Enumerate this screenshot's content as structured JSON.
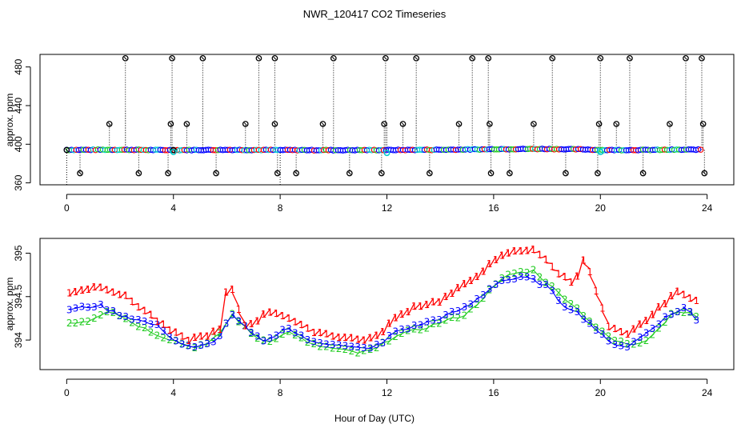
{
  "title": "NWR_120417  CO2 Timeseries",
  "xlabel": "Hour of Day (UTC)",
  "colors": {
    "s1": "#ff0000",
    "s2": "#22cc22",
    "s3": "#0000ff",
    "outlier": "#000000",
    "cyan": "#00cccc",
    "blue": "#0000ff"
  },
  "chart_data": [
    {
      "type": "scatter",
      "panel": "top",
      "title": "NWR_120417  CO2 Timeseries",
      "ylabel": "approx. ppm",
      "xlabel": "",
      "xlim": [
        -1,
        25
      ],
      "ylim": [
        358,
        493
      ],
      "xticks": [
        0,
        4,
        8,
        12,
        16,
        20,
        24
      ],
      "yticks": [
        360,
        400,
        440,
        480
      ],
      "baseline": [
        [
          0.0,
          394.2
        ],
        [
          2.0,
          394.3
        ],
        [
          4.0,
          393.9
        ],
        [
          6.0,
          394.2
        ],
        [
          8.0,
          394.0
        ],
        [
          10.0,
          393.9
        ],
        [
          12.0,
          394.0
        ],
        [
          14.0,
          394.3
        ],
        [
          15.8,
          394.7
        ],
        [
          16.0,
          395.0
        ],
        [
          18.0,
          395.1
        ],
        [
          19.5,
          394.6
        ],
        [
          20.0,
          394.0
        ],
        [
          22.0,
          394.1
        ],
        [
          23.8,
          394.4
        ]
      ],
      "outliers": {
        "x": [
          0.0,
          0.5,
          1.6,
          2.2,
          2.7,
          3.8,
          3.9,
          3.95,
          4.0,
          4.5,
          5.1,
          5.6,
          6.7,
          7.2,
          7.8,
          7.8,
          7.9,
          8.6,
          9.6,
          10.0,
          10.6,
          11.8,
          11.9,
          11.95,
          12.6,
          13.1,
          13.6,
          14.7,
          15.2,
          15.8,
          15.85,
          15.9,
          16.6,
          17.5,
          18.2,
          18.7,
          19.9,
          19.95,
          20.0,
          20.6,
          21.1,
          21.6,
          22.6,
          23.2,
          23.8,
          23.85,
          23.9
        ],
        "y": [
          394,
          370,
          421,
          489,
          370,
          370,
          421,
          489,
          394,
          421,
          489,
          370,
          421,
          489,
          489,
          421,
          370,
          370,
          421,
          489,
          370,
          370,
          421,
          489,
          421,
          489,
          370,
          421,
          489,
          489,
          421,
          370,
          370,
          421,
          489,
          370,
          370,
          421,
          489,
          421,
          489,
          370,
          421,
          489,
          489,
          421,
          370
        ]
      },
      "highlights": {
        "x": [
          4.0,
          12.0,
          20.0
        ],
        "y": [
          392,
          391,
          392
        ]
      },
      "dashes": [
        {
          "x": 0.0,
          "y_from": 358,
          "y_to": 394
        },
        {
          "x": 2.2,
          "y_from": 394,
          "y_to": 435
        },
        {
          "x": 5.1,
          "y_from": 394,
          "y_to": 450
        },
        {
          "x": 8.0,
          "y_from": 358,
          "y_to": 394
        },
        {
          "x": 12.0,
          "y_from": 394,
          "y_to": 420
        },
        {
          "x": 13.1,
          "y_from": 394,
          "y_to": 430
        },
        {
          "x": 20.1,
          "y_from": 390,
          "y_to": 394
        }
      ]
    },
    {
      "type": "line",
      "panel": "bottom",
      "ylabel": "approx. ppm",
      "xlabel": "Hour of Day (UTC)",
      "xlim": [
        -1,
        25
      ],
      "ylim": [
        393.66,
        395.17
      ],
      "xticks": [
        0,
        4,
        8,
        12,
        16,
        20,
        24
      ],
      "yticks": [
        394.0,
        394.5,
        395.0
      ],
      "series": [
        {
          "name": "1",
          "symbol": "1",
          "color": "#ff0000",
          "points": [
            [
              0.1,
              394.55
            ],
            [
              1.3,
              394.62
            ],
            [
              2.2,
              394.5
            ],
            [
              3.0,
              394.32
            ],
            [
              3.8,
              394.12
            ],
            [
              4.5,
              394.0
            ],
            [
              5.2,
              394.05
            ],
            [
              5.8,
              394.12
            ],
            [
              6.0,
              394.6
            ],
            [
              6.3,
              394.55
            ],
            [
              6.6,
              394.15
            ],
            [
              7.1,
              394.22
            ],
            [
              7.6,
              394.33
            ],
            [
              8.2,
              394.28
            ],
            [
              9.0,
              394.12
            ],
            [
              10.0,
              394.05
            ],
            [
              11.0,
              394.0
            ],
            [
              11.6,
              394.03
            ],
            [
              12.2,
              394.22
            ],
            [
              13.0,
              394.38
            ],
            [
              14.0,
              394.45
            ],
            [
              15.0,
              394.65
            ],
            [
              15.8,
              394.85
            ],
            [
              16.5,
              395.0
            ],
            [
              17.5,
              395.05
            ],
            [
              18.5,
              394.75
            ],
            [
              19.0,
              394.65
            ],
            [
              19.4,
              394.95
            ],
            [
              19.8,
              394.6
            ],
            [
              20.3,
              394.15
            ],
            [
              21.0,
              394.05
            ],
            [
              22.0,
              394.3
            ],
            [
              22.8,
              394.55
            ],
            [
              23.8,
              394.45
            ]
          ]
        },
        {
          "name": "2",
          "symbol": "2",
          "color": "#22cc22",
          "points": [
            [
              0.1,
              394.2
            ],
            [
              0.8,
              394.22
            ],
            [
              1.6,
              394.35
            ],
            [
              2.6,
              394.18
            ],
            [
              3.5,
              394.05
            ],
            [
              4.0,
              394.0
            ],
            [
              4.7,
              393.92
            ],
            [
              5.3,
              393.95
            ],
            [
              5.8,
              394.1
            ],
            [
              6.2,
              394.3
            ],
            [
              6.5,
              394.2
            ],
            [
              7.0,
              394.05
            ],
            [
              7.5,
              393.98
            ],
            [
              8.4,
              394.1
            ],
            [
              9.1,
              393.95
            ],
            [
              10.0,
              393.9
            ],
            [
              11.0,
              393.85
            ],
            [
              11.6,
              393.9
            ],
            [
              12.3,
              394.05
            ],
            [
              13.2,
              394.12
            ],
            [
              14.0,
              394.2
            ],
            [
              15.0,
              394.3
            ],
            [
              15.8,
              394.55
            ],
            [
              16.5,
              394.75
            ],
            [
              17.5,
              394.8
            ],
            [
              18.4,
              394.55
            ],
            [
              19.0,
              394.4
            ],
            [
              19.5,
              394.25
            ],
            [
              20.0,
              394.1
            ],
            [
              20.6,
              393.98
            ],
            [
              21.2,
              393.95
            ],
            [
              21.7,
              394.0
            ],
            [
              22.4,
              394.2
            ],
            [
              22.8,
              394.35
            ],
            [
              23.4,
              394.3
            ],
            [
              23.8,
              394.25
            ]
          ]
        },
        {
          "name": "3",
          "symbol": "3",
          "color": "#0000ff",
          "points": [
            [
              0.1,
              394.35
            ],
            [
              1.2,
              394.4
            ],
            [
              1.9,
              394.3
            ],
            [
              2.8,
              394.22
            ],
            [
              3.5,
              394.15
            ],
            [
              4.0,
              394.0
            ],
            [
              4.7,
              393.9
            ],
            [
              5.3,
              393.95
            ],
            [
              5.8,
              394.05
            ],
            [
              6.1,
              394.3
            ],
            [
              6.5,
              394.2
            ],
            [
              7.0,
              394.05
            ],
            [
              7.5,
              393.98
            ],
            [
              8.2,
              394.15
            ],
            [
              9.0,
              394.0
            ],
            [
              10.0,
              393.95
            ],
            [
              10.5,
              393.92
            ],
            [
              11.2,
              393.9
            ],
            [
              11.8,
              393.95
            ],
            [
              12.3,
              394.1
            ],
            [
              13.0,
              394.15
            ],
            [
              14.0,
              394.25
            ],
            [
              15.0,
              394.38
            ],
            [
              15.6,
              394.52
            ],
            [
              16.2,
              394.68
            ],
            [
              17.2,
              394.72
            ],
            [
              18.0,
              394.62
            ],
            [
              18.6,
              394.4
            ],
            [
              19.0,
              394.35
            ],
            [
              19.5,
              394.22
            ],
            [
              20.3,
              393.98
            ],
            [
              21.0,
              393.92
            ],
            [
              21.6,
              394.05
            ],
            [
              22.4,
              394.25
            ],
            [
              23.2,
              394.38
            ],
            [
              23.8,
              394.15
            ]
          ]
        }
      ]
    }
  ]
}
